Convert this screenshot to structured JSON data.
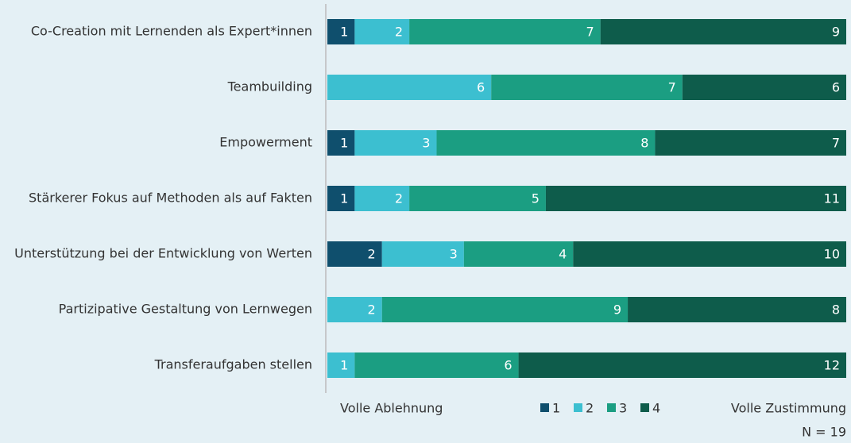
{
  "chart_data": {
    "type": "stacked-bar-horizontal",
    "categories": [
      "Co-Creation mit Lernenden als Expert*innen",
      "Teambuilding",
      "Empowerment",
      "Stärkerer Fokus auf Methoden als auf Fakten",
      "Unterstützung bei der Entwicklung von Werten",
      "Partizipative Gestaltung von Lernwegen",
      "Transferaufgaben stellen"
    ],
    "series": [
      {
        "name": "1",
        "color": "#0f4f6d",
        "values": [
          1,
          null,
          1,
          1,
          2,
          null,
          null
        ]
      },
      {
        "name": "2",
        "color": "#3cbfd0",
        "values": [
          2,
          6,
          3,
          2,
          3,
          2,
          1
        ]
      },
      {
        "name": "3",
        "color": "#1b9e82",
        "values": [
          7,
          7,
          8,
          5,
          4,
          9,
          6
        ]
      },
      {
        "name": "4",
        "color": "#0e5c4b",
        "values": [
          9,
          6,
          7,
          11,
          10,
          8,
          12
        ]
      }
    ],
    "xlim": [
      0,
      19
    ],
    "axis_left_label": "Volle Ablehnung",
    "axis_right_label": "Volle Zustimmung",
    "note": "N = 19"
  }
}
